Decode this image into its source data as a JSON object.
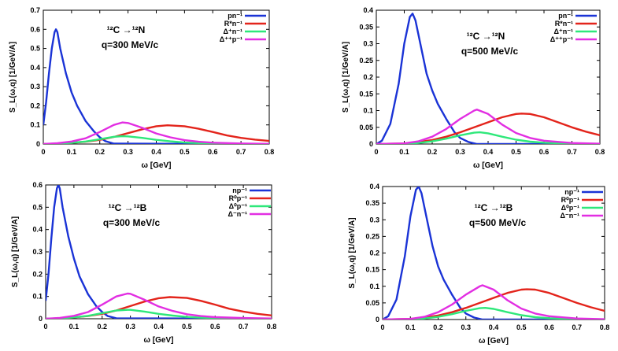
{
  "colors": {
    "blue": "#1a33d6",
    "red": "#e3241b",
    "green": "#2ee87a",
    "magenta": "#e22ee2"
  },
  "chart_data": [
    {
      "type": "line",
      "title": "¹²C →¹²N",
      "subtitle": "q=300 MeV/c",
      "xlabel": "ω [GeV]",
      "ylabel": "S_L(ω,q) [1/GeV/A]",
      "xlim": [
        0,
        0.8
      ],
      "ylim": [
        0,
        0.7
      ],
      "xticks": [
        "0",
        "0.1",
        "0.2",
        "0.3",
        "0.4",
        "0.5",
        "0.6",
        "0.7",
        "0.8"
      ],
      "yticks": [
        "0",
        "0.1",
        "0.2",
        "0.3",
        "0.4",
        "0.5",
        "0.6",
        "0.7"
      ],
      "legend_position": "top-right",
      "series": [
        {
          "name": "pn⁻¹",
          "color": "blue",
          "x": [
            0,
            0.01,
            0.02,
            0.03,
            0.04,
            0.045,
            0.05,
            0.06,
            0.08,
            0.1,
            0.12,
            0.15,
            0.18,
            0.2,
            0.22,
            0.25,
            0.8
          ],
          "y": [
            0.1,
            0.22,
            0.37,
            0.5,
            0.585,
            0.6,
            0.585,
            0.5,
            0.37,
            0.27,
            0.2,
            0.12,
            0.065,
            0.035,
            0.015,
            0.002,
            0
          ]
        },
        {
          "name": "R*n⁻¹",
          "color": "red",
          "x": [
            0,
            0.05,
            0.1,
            0.15,
            0.2,
            0.25,
            0.3,
            0.35,
            0.4,
            0.44,
            0.5,
            0.55,
            0.6,
            0.65,
            0.7,
            0.75,
            0.8
          ],
          "y": [
            0,
            0.002,
            0.006,
            0.012,
            0.022,
            0.037,
            0.057,
            0.077,
            0.093,
            0.098,
            0.093,
            0.08,
            0.063,
            0.045,
            0.032,
            0.023,
            0.016
          ]
        },
        {
          "name": "Δ⁺n⁻¹",
          "color": "green",
          "x": [
            0,
            0.05,
            0.1,
            0.15,
            0.2,
            0.25,
            0.28,
            0.3,
            0.35,
            0.4,
            0.45,
            0.5,
            0.55,
            0.6,
            0.7,
            0.8
          ],
          "y": [
            0,
            0.002,
            0.006,
            0.013,
            0.025,
            0.038,
            0.041,
            0.04,
            0.032,
            0.022,
            0.014,
            0.008,
            0.005,
            0.003,
            0.001,
            0
          ]
        },
        {
          "name": "Δ⁺⁺p⁻¹",
          "color": "magenta",
          "x": [
            0,
            0.05,
            0.1,
            0.15,
            0.2,
            0.25,
            0.28,
            0.3,
            0.35,
            0.4,
            0.45,
            0.5,
            0.55,
            0.6,
            0.7,
            0.8
          ],
          "y": [
            0,
            0.004,
            0.013,
            0.03,
            0.063,
            0.1,
            0.113,
            0.11,
            0.085,
            0.055,
            0.035,
            0.02,
            0.012,
            0.007,
            0.003,
            0.001
          ]
        }
      ]
    },
    {
      "type": "line",
      "title": "¹²C →¹²N",
      "subtitle": "q=500 MeV/c",
      "xlabel": "ω [GeV]",
      "ylabel": "S_L(ω,q) [1/GeV/A]",
      "xlim": [
        0,
        0.8
      ],
      "ylim": [
        0,
        0.4
      ],
      "xticks": [
        "0",
        "0.1",
        "0.2",
        "0.3",
        "0.4",
        "0.5",
        "0.6",
        "0.7",
        "0.8"
      ],
      "yticks": [
        "0",
        "0.05",
        "0.1",
        "0.15",
        "0.2",
        "0.25",
        "0.3",
        "0.35",
        "0.4"
      ],
      "legend_position": "top-right",
      "series": [
        {
          "name": "pn⁻¹",
          "color": "blue",
          "x": [
            0,
            0.02,
            0.05,
            0.08,
            0.1,
            0.12,
            0.13,
            0.14,
            0.16,
            0.18,
            0.2,
            0.22,
            0.25,
            0.28,
            0.3,
            0.33,
            0.36,
            0.8
          ],
          "y": [
            0,
            0.01,
            0.06,
            0.18,
            0.3,
            0.38,
            0.39,
            0.37,
            0.29,
            0.21,
            0.16,
            0.12,
            0.075,
            0.035,
            0.018,
            0.006,
            0,
            0
          ]
        },
        {
          "name": "R*n⁻¹",
          "color": "red",
          "x": [
            0,
            0.1,
            0.15,
            0.2,
            0.25,
            0.3,
            0.35,
            0.4,
            0.45,
            0.5,
            0.52,
            0.55,
            0.6,
            0.65,
            0.7,
            0.75,
            0.8
          ],
          "y": [
            0,
            0.002,
            0.006,
            0.012,
            0.022,
            0.035,
            0.05,
            0.065,
            0.08,
            0.09,
            0.091,
            0.09,
            0.08,
            0.065,
            0.05,
            0.037,
            0.026
          ]
        },
        {
          "name": "Δ⁺n⁻¹",
          "color": "green",
          "x": [
            0,
            0.1,
            0.15,
            0.2,
            0.25,
            0.3,
            0.35,
            0.37,
            0.4,
            0.45,
            0.5,
            0.55,
            0.6,
            0.7,
            0.8
          ],
          "y": [
            0,
            0.001,
            0.003,
            0.008,
            0.016,
            0.026,
            0.034,
            0.035,
            0.032,
            0.022,
            0.013,
            0.007,
            0.004,
            0.001,
            0
          ]
        },
        {
          "name": "Δ⁺⁺p⁻¹",
          "color": "magenta",
          "x": [
            0,
            0.1,
            0.15,
            0.2,
            0.25,
            0.3,
            0.35,
            0.36,
            0.4,
            0.45,
            0.5,
            0.55,
            0.6,
            0.7,
            0.8
          ],
          "y": [
            0,
            0.002,
            0.008,
            0.022,
            0.045,
            0.075,
            0.1,
            0.103,
            0.09,
            0.058,
            0.033,
            0.018,
            0.01,
            0.003,
            0.001
          ]
        }
      ]
    },
    {
      "type": "line",
      "title": "¹²C →¹²B",
      "subtitle": "q=300 MeV/c",
      "xlabel": "ω [GeV]",
      "ylabel": "S_L(ω,q) [1/GeV/A]",
      "xlim": [
        0,
        0.8
      ],
      "ylim": [
        0,
        0.6
      ],
      "xticks": [
        "0",
        "0.1",
        "0.2",
        "0.3",
        "0.4",
        "0.5",
        "0.6",
        "0.7",
        "0.8"
      ],
      "yticks": [
        "0",
        "0.1",
        "0.2",
        "0.3",
        "0.4",
        "0.5",
        "0.6"
      ],
      "legend_position": "top-right",
      "series": [
        {
          "name": "np⁻¹",
          "color": "blue",
          "x": [
            0,
            0.01,
            0.02,
            0.03,
            0.04,
            0.045,
            0.05,
            0.06,
            0.08,
            0.1,
            0.12,
            0.15,
            0.18,
            0.2,
            0.22,
            0.25,
            0.8
          ],
          "y": [
            0.08,
            0.2,
            0.36,
            0.5,
            0.585,
            0.6,
            0.585,
            0.5,
            0.37,
            0.27,
            0.19,
            0.11,
            0.055,
            0.03,
            0.012,
            0.002,
            0
          ]
        },
        {
          "name": "R⁰p⁻¹",
          "color": "red",
          "x": [
            0,
            0.05,
            0.1,
            0.15,
            0.2,
            0.25,
            0.3,
            0.35,
            0.4,
            0.44,
            0.5,
            0.55,
            0.6,
            0.65,
            0.7,
            0.75,
            0.8
          ],
          "y": [
            0,
            0.002,
            0.006,
            0.012,
            0.022,
            0.037,
            0.057,
            0.077,
            0.092,
            0.097,
            0.093,
            0.08,
            0.063,
            0.045,
            0.032,
            0.022,
            0.015
          ]
        },
        {
          "name": "Δ⁰p⁻¹",
          "color": "green",
          "x": [
            0,
            0.05,
            0.1,
            0.15,
            0.2,
            0.25,
            0.29,
            0.3,
            0.35,
            0.4,
            0.45,
            0.5,
            0.55,
            0.6,
            0.7,
            0.8
          ],
          "y": [
            0,
            0.002,
            0.006,
            0.013,
            0.025,
            0.037,
            0.04,
            0.04,
            0.032,
            0.022,
            0.014,
            0.008,
            0.005,
            0.003,
            0.001,
            0
          ]
        },
        {
          "name": "Δ⁻n⁻¹",
          "color": "magenta",
          "x": [
            0,
            0.05,
            0.1,
            0.15,
            0.2,
            0.25,
            0.29,
            0.3,
            0.35,
            0.4,
            0.45,
            0.5,
            0.55,
            0.6,
            0.7,
            0.8
          ],
          "y": [
            0,
            0.004,
            0.013,
            0.03,
            0.063,
            0.1,
            0.113,
            0.112,
            0.085,
            0.055,
            0.035,
            0.02,
            0.012,
            0.007,
            0.003,
            0.001
          ]
        }
      ]
    },
    {
      "type": "line",
      "title": "¹²C →¹²B",
      "subtitle": "q=500 MeV/c",
      "xlabel": "ω [GeV]",
      "ylabel": "S_L(ω,q) [1/GeV/A]",
      "xlim": [
        0,
        0.8
      ],
      "ylim": [
        0,
        0.4
      ],
      "xticks": [
        "0",
        "0.1",
        "0.2",
        "0.3",
        "0.4",
        "0.5",
        "0.6",
        "0.7",
        "0.8"
      ],
      "yticks": [
        "0",
        "0.05",
        "0.1",
        "0.15",
        "0.2",
        "0.25",
        "0.3",
        "0.35",
        "0.4"
      ],
      "legend_position": "top-right",
      "series": [
        {
          "name": "np⁻¹",
          "color": "blue",
          "x": [
            0,
            0.02,
            0.05,
            0.08,
            0.1,
            0.12,
            0.13,
            0.14,
            0.16,
            0.18,
            0.2,
            0.22,
            0.25,
            0.28,
            0.3,
            0.33,
            0.36,
            0.8
          ],
          "y": [
            0,
            0.01,
            0.06,
            0.19,
            0.31,
            0.39,
            0.4,
            0.38,
            0.3,
            0.22,
            0.16,
            0.12,
            0.075,
            0.035,
            0.018,
            0.006,
            0,
            0
          ]
        },
        {
          "name": "R⁰p⁻¹",
          "color": "red",
          "x": [
            0,
            0.1,
            0.15,
            0.2,
            0.25,
            0.3,
            0.35,
            0.4,
            0.45,
            0.5,
            0.52,
            0.55,
            0.6,
            0.65,
            0.7,
            0.75,
            0.8
          ],
          "y": [
            0,
            0.002,
            0.006,
            0.012,
            0.022,
            0.035,
            0.05,
            0.065,
            0.08,
            0.09,
            0.091,
            0.09,
            0.08,
            0.065,
            0.05,
            0.037,
            0.026
          ]
        },
        {
          "name": "Δ⁰p⁻¹",
          "color": "green",
          "x": [
            0,
            0.1,
            0.15,
            0.2,
            0.25,
            0.3,
            0.35,
            0.37,
            0.4,
            0.45,
            0.5,
            0.55,
            0.6,
            0.7,
            0.8
          ],
          "y": [
            0,
            0.001,
            0.003,
            0.008,
            0.016,
            0.026,
            0.034,
            0.035,
            0.032,
            0.022,
            0.013,
            0.007,
            0.004,
            0.001,
            0
          ]
        },
        {
          "name": "Δ⁻n⁻¹",
          "color": "magenta",
          "x": [
            0,
            0.1,
            0.15,
            0.2,
            0.25,
            0.3,
            0.35,
            0.36,
            0.4,
            0.45,
            0.5,
            0.55,
            0.6,
            0.7,
            0.8
          ],
          "y": [
            0,
            0.002,
            0.008,
            0.022,
            0.045,
            0.075,
            0.1,
            0.103,
            0.09,
            0.058,
            0.033,
            0.018,
            0.01,
            0.003,
            0.001
          ]
        }
      ]
    }
  ]
}
